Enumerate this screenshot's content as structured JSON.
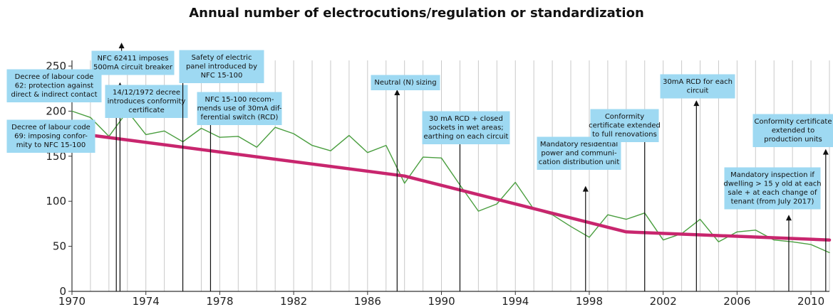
{
  "chart_data": {
    "type": "line",
    "title": "Annual number of electrocutions/regulation or standardization",
    "xlabel": "",
    "ylabel": "",
    "xlim": [
      1970,
      2011
    ],
    "ylim": [
      0,
      250
    ],
    "x_ticks": [
      1970,
      1974,
      1978,
      1982,
      1986,
      1990,
      1994,
      1998,
      2002,
      2006,
      2010
    ],
    "y_ticks": [
      0,
      50,
      100,
      150,
      200,
      250
    ],
    "grid": "vertical",
    "series": [
      {
        "name": "",
        "color": "#4a9e3f",
        "x": [
          1970,
          1971,
          1972,
          1973,
          1974,
          1975,
          1976,
          1977,
          1978,
          1979,
          1980,
          1981,
          1982,
          1983,
          1984,
          1985,
          1986,
          1987,
          1988,
          1989,
          1990,
          1991,
          1992,
          1993,
          1994,
          1995,
          1996,
          1997,
          1998,
          1999,
          2000,
          2001,
          2002,
          2003,
          2004,
          2005,
          2006,
          2007,
          2008,
          2009,
          2010,
          2011
        ],
        "values": [
          200,
          193,
          172,
          200,
          174,
          178,
          166,
          181,
          171,
          172,
          160,
          182,
          175,
          162,
          156,
          173,
          154,
          162,
          120,
          149,
          148,
          118,
          89,
          97,
          121,
          91,
          85,
          72,
          60,
          85,
          80,
          87,
          57,
          64,
          80,
          55,
          66,
          68,
          57,
          55,
          52,
          43
        ]
      },
      {
        "name": "",
        "color": "#c8266e",
        "x": [
          1970,
          1988,
          2000,
          2011
        ],
        "values": [
          176,
          128,
          66,
          57
        ]
      }
    ],
    "annotations": [
      {
        "year": 1972.4,
        "head": 200,
        "text": [
          "Decree of labour code",
          "69: imposing confor-",
          "mity to NFC 15-100"
        ]
      },
      {
        "year": 1972.2,
        "head": 218,
        "text": [
          "Decree of labour code",
          "62: protection against",
          "direct & indirect contact"
        ]
      },
      {
        "year": 1972.8,
        "head": 290,
        "text": [
          "NFC 62411 imposes",
          "500mA circuit breaker"
        ]
      },
      {
        "year": 1972.6,
        "head": 232,
        "text": [
          "14/12/1972 decree",
          "introduces conformity",
          "certificate"
        ]
      },
      {
        "year": 1976.0,
        "head": 250,
        "text": [
          "Safety of electric",
          "panel introduced by",
          "NFC 15-100"
        ]
      },
      {
        "year": 1977.5,
        "head": 206,
        "text": [
          "NFC 15-100 recom-",
          "mends use of 30mA dif-",
          "ferential switch (RCD)"
        ]
      },
      {
        "year": 1987.6,
        "head": 224,
        "text": [
          "Neutral (N) sizing"
        ]
      },
      {
        "year": 1991.0,
        "head": 179,
        "text": [
          "30 mA RCD + closed",
          "sockets in wet areas;",
          "earthing on each circuit"
        ]
      },
      {
        "year": 1997.8,
        "head": 117,
        "text": [
          "Mandatory residential",
          "power and communi-",
          "cation distribution unit"
        ]
      },
      {
        "year": 2001.0,
        "head": 176,
        "text": [
          "Conformity",
          "certificate extended",
          "to full renovations"
        ]
      },
      {
        "year": 2003.8,
        "head": 212,
        "text": [
          "30mA RCD for each",
          "circuit"
        ]
      },
      {
        "year": 2008.8,
        "head": 85,
        "text": [
          "Mandatory inspection if",
          "dwelling > 15 y old at each",
          "sale + at each change of",
          "tenant (from July 2017)"
        ]
      },
      {
        "year": 2010.8,
        "head": 158,
        "text": [
          "Conformity certificate",
          "extended to",
          "production units"
        ]
      }
    ]
  }
}
